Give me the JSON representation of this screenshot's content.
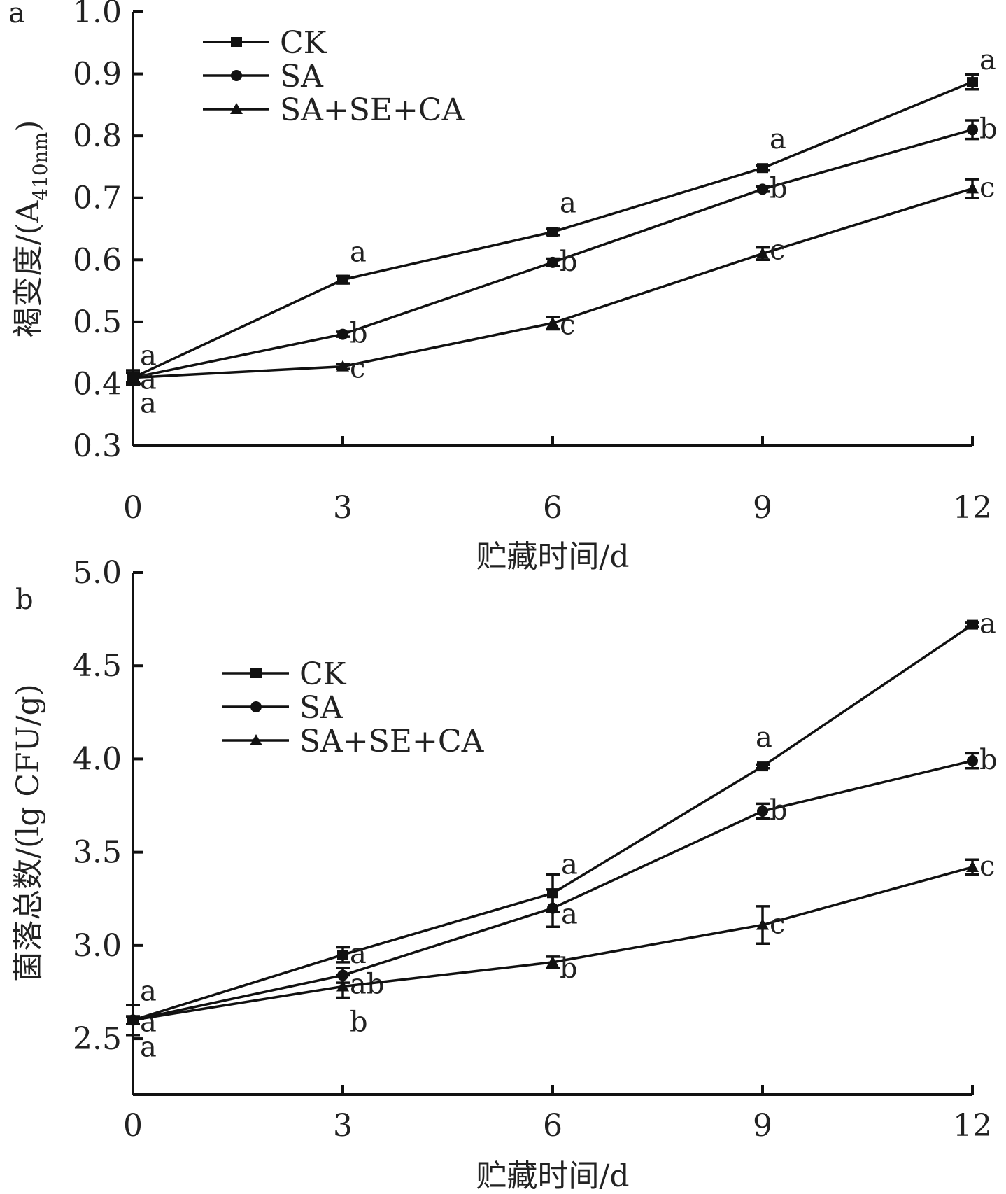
{
  "chart_data": [
    {
      "type": "line",
      "panel": "a",
      "title": "",
      "xlabel": "贮藏时间/d",
      "ylabel": "褐变度/(A",
      "ylabel_subscript": "410nm",
      "ylabel_suffix": ")",
      "x": [
        0,
        3,
        6,
        9,
        12
      ],
      "xlim": [
        0,
        12
      ],
      "ylim": [
        0.3,
        1.0
      ],
      "xticks": [
        "0",
        "3",
        "6",
        "9",
        "12"
      ],
      "yticks": [
        "0.3",
        "0.4",
        "0.5",
        "0.6",
        "0.7",
        "0.8",
        "0.9",
        "1.0"
      ],
      "grid": false,
      "legend_position": "top-left",
      "series": [
        {
          "name": "CK",
          "marker": "square",
          "values": [
            0.41,
            0.568,
            0.645,
            0.748,
            0.887
          ],
          "errors": [
            0.012,
            0.006,
            0.005,
            0.004,
            0.012
          ],
          "significance": [
            "a",
            "a",
            "a",
            "a",
            "a"
          ]
        },
        {
          "name": "SA",
          "marker": "circle",
          "values": [
            0.41,
            0.48,
            0.596,
            0.714,
            0.81
          ],
          "errors": [
            0.008,
            0.004,
            0.006,
            0.004,
            0.015
          ],
          "significance": [
            "a",
            "b",
            "b",
            "b",
            "b"
          ]
        },
        {
          "name": "SA+SE+CA",
          "marker": "triangle",
          "values": [
            0.41,
            0.428,
            0.498,
            0.61,
            0.715
          ],
          "errors": [
            0.008,
            0.004,
            0.01,
            0.01,
            0.015
          ],
          "significance": [
            "a",
            "c",
            "c",
            "c",
            "c"
          ]
        }
      ]
    },
    {
      "type": "line",
      "panel": "b",
      "title": "",
      "xlabel": "贮藏时间/d",
      "ylabel": "菌落总数/(lg CFU/g)",
      "x": [
        0,
        3,
        6,
        9,
        12
      ],
      "xlim": [
        0,
        12
      ],
      "ylim": [
        2.2,
        5.0
      ],
      "xticks": [
        "0",
        "3",
        "6",
        "9",
        "12"
      ],
      "yticks": [
        "2.5",
        "3.0",
        "3.5",
        "4.0",
        "4.5",
        "5.0"
      ],
      "grid": false,
      "legend_position": "top-left",
      "series": [
        {
          "name": "CK",
          "marker": "square",
          "values": [
            2.6,
            2.95,
            3.28,
            3.96,
            4.72
          ],
          "errors": [
            0.08,
            0.04,
            0.1,
            0.01,
            0.01
          ],
          "significance": [
            "a",
            "a",
            "a",
            "a",
            "a"
          ]
        },
        {
          "name": "SA",
          "marker": "circle",
          "values": [
            2.6,
            2.84,
            3.2,
            3.72,
            3.99
          ],
          "errors": [
            0.02,
            0.04,
            0.1,
            0.04,
            0.04
          ],
          "significance": [
            "a",
            "ab",
            "a",
            "b",
            "b"
          ]
        },
        {
          "name": "SA+SE+CA",
          "marker": "triangle",
          "values": [
            2.6,
            2.78,
            2.91,
            3.11,
            3.42
          ],
          "errors": [
            0.02,
            0.06,
            0.03,
            0.1,
            0.04
          ],
          "significance": [
            "a",
            "b",
            "b",
            "c",
            "c"
          ]
        }
      ]
    }
  ]
}
